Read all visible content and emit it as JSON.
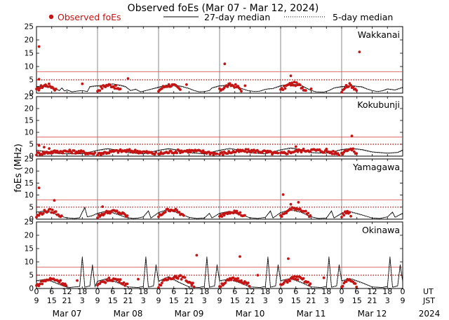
{
  "chart_data": {
    "type": "scatter",
    "title": "Observed foEs (Mar 07 - Mar 12, 2024)",
    "ylabel": "foEs (MHz)",
    "year": "2024",
    "ylim": [
      0,
      25
    ],
    "yticks": [
      0,
      5,
      10,
      15,
      20,
      25
    ],
    "xlim_hours_ut": [
      0,
      144
    ],
    "legend": {
      "observed": "Observed foEs",
      "median27": "27-day median",
      "median5": "5-day median"
    },
    "colors": {
      "observed": "#c41414",
      "median27": "#000000",
      "median5": "#000000",
      "threshold_solid": "#d84848",
      "threshold_dotted": "#b00000",
      "grid": "#888888"
    },
    "tick_row_labels": {
      "ut": "UT",
      "jst": "JST"
    },
    "ut_tick_labels": [
      "0",
      "6",
      "12",
      "18",
      "0",
      "6",
      "12",
      "18",
      "0",
      "6",
      "12",
      "18",
      "0",
      "6",
      "12",
      "18",
      "0",
      "6",
      "12",
      "18",
      "0",
      "6",
      "12",
      "18",
      "0"
    ],
    "jst_tick_labels": [
      "9",
      "15",
      "21",
      "3",
      "9",
      "15",
      "21",
      "3",
      "9",
      "15",
      "21",
      "3",
      "9",
      "15",
      "21",
      "3",
      "9",
      "15",
      "21",
      "3",
      "9",
      "15",
      "21",
      "3",
      "9"
    ],
    "date_labels": [
      "Mar 07",
      "Mar 08",
      "Mar 09",
      "Mar 10",
      "Mar 11",
      "Mar 12"
    ],
    "thresholds_mhz": {
      "solid": 8,
      "dotted": 5
    },
    "stations": [
      {
        "name": "Wakkanai",
        "data_end_hour": 144,
        "observed": [
          [
            1,
            17.5
          ],
          [
            59,
            3.2
          ],
          [
            74,
            11
          ],
          [
            127,
            15.5
          ],
          [
            100,
            6.5
          ],
          [
            1,
            5.2
          ],
          [
            36,
            5.5
          ],
          [
            18,
            3.5
          ],
          [
            82,
            2.8
          ],
          [
            108,
            1.6
          ]
        ],
        "median": [
          [
            0,
            2.5
          ],
          [
            2,
            2.6
          ],
          [
            4,
            2.4
          ],
          [
            6,
            2.2
          ],
          [
            8,
            1.5
          ],
          [
            9,
            1.0
          ],
          [
            10,
            2.0
          ],
          [
            11,
            0.8
          ],
          [
            12,
            1.2
          ],
          [
            14,
            0.5
          ],
          [
            16,
            0.8
          ],
          [
            18,
            1.0
          ],
          [
            20,
            0.6
          ],
          [
            21,
            2.5
          ],
          [
            24,
            2.8
          ],
          [
            27,
            3.0
          ],
          [
            30,
            3.5
          ],
          [
            33,
            3.0
          ],
          [
            35,
            2.5
          ],
          [
            37,
            1.0
          ],
          [
            39,
            1.5
          ],
          [
            41,
            0.5
          ],
          [
            43,
            1.0
          ],
          [
            45,
            1.5
          ],
          [
            47,
            2.0
          ],
          [
            49,
            2.5
          ],
          [
            51,
            3.0
          ],
          [
            54,
            2.9
          ],
          [
            57,
            2.6
          ],
          [
            60,
            1.8
          ],
          [
            62,
            1.0
          ],
          [
            64,
            0.5
          ],
          [
            66,
            0.6
          ],
          [
            68,
            1.0
          ],
          [
            69,
            2.0
          ],
          [
            72,
            2.8
          ],
          [
            76,
            3.0
          ],
          [
            80,
            2.0
          ],
          [
            83,
            1.0
          ],
          [
            86,
            0.6
          ],
          [
            88,
            0.8
          ],
          [
            90,
            1.5
          ],
          [
            93,
            1.8
          ],
          [
            96,
            2.8
          ],
          [
            100,
            3.5
          ],
          [
            104,
            3.0
          ],
          [
            106,
            2.0
          ],
          [
            108,
            1.0
          ],
          [
            110,
            0.5
          ],
          [
            113,
            0.4
          ],
          [
            115,
            1.0
          ],
          [
            117,
            2.0
          ],
          [
            120,
            2.5
          ],
          [
            124,
            2.8
          ],
          [
            128,
            2.4
          ],
          [
            130,
            1.6
          ],
          [
            132,
            1.0
          ],
          [
            134,
            0.6
          ],
          [
            136,
            0.9
          ],
          [
            138,
            1.6
          ],
          [
            141,
            1.2
          ],
          [
            144,
            2.2
          ]
        ],
        "obs_ranges": [
          [
            0,
            8,
            3
          ],
          [
            24,
            33,
            3
          ],
          [
            48,
            57,
            3
          ],
          [
            72,
            81,
            3
          ],
          [
            96,
            106,
            3.5
          ],
          [
            120,
            126,
            3
          ]
        ]
      },
      {
        "name": "Kokubunji",
        "data_end_hour": 126,
        "observed": [
          [
            124,
            8.5
          ],
          [
            1,
            4.5
          ],
          [
            3,
            3.8
          ],
          [
            5,
            3.2
          ],
          [
            102,
            4.0
          ],
          [
            114,
            3.0
          ]
        ],
        "median": [
          [
            0,
            2.5
          ],
          [
            4,
            2.0
          ],
          [
            8,
            1.2
          ],
          [
            12,
            1.0
          ],
          [
            18,
            1.0
          ],
          [
            24,
            2.5
          ],
          [
            28,
            3.2
          ],
          [
            32,
            2.5
          ],
          [
            36,
            1.5
          ],
          [
            42,
            1.0
          ],
          [
            48,
            2.5
          ],
          [
            52,
            3.2
          ],
          [
            56,
            2.5
          ],
          [
            60,
            1.5
          ],
          [
            66,
            1.0
          ],
          [
            72,
            2.5
          ],
          [
            76,
            3.3
          ],
          [
            80,
            2.5
          ],
          [
            84,
            1.5
          ],
          [
            90,
            1.0
          ],
          [
            96,
            2.7
          ],
          [
            100,
            3.5
          ],
          [
            104,
            2.8
          ],
          [
            108,
            1.5
          ],
          [
            114,
            1.3
          ],
          [
            117,
            2.0
          ],
          [
            120,
            2.8
          ],
          [
            124,
            3.3
          ],
          [
            128,
            2.8
          ],
          [
            132,
            1.8
          ],
          [
            138,
            1.3
          ],
          [
            142,
            1.6
          ],
          [
            144,
            2.6
          ]
        ],
        "obs_ranges": [
          [
            0,
            23,
            2
          ],
          [
            24,
            47,
            2.2
          ],
          [
            48,
            71,
            2.2
          ],
          [
            72,
            95,
            2.2
          ],
          [
            96,
            119,
            2.5
          ],
          [
            120,
            126,
            3
          ]
        ]
      },
      {
        "name": "Yamagawa",
        "data_end_hour": 126,
        "observed": [
          [
            1,
            13
          ],
          [
            7,
            7.8
          ],
          [
            97,
            10.2
          ],
          [
            103,
            7
          ],
          [
            100,
            6.2
          ],
          [
            26,
            5.2
          ]
        ],
        "median": [
          [
            0,
            3.0
          ],
          [
            4,
            3.5
          ],
          [
            8,
            2.0
          ],
          [
            11,
            0.8
          ],
          [
            13,
            0.5
          ],
          [
            15,
            0.3
          ],
          [
            17,
            0.6
          ],
          [
            18,
            3.0
          ],
          [
            19,
            5.0
          ],
          [
            20,
            1.0
          ],
          [
            22,
            1.5
          ],
          [
            24,
            2.5
          ],
          [
            28,
            3.5
          ],
          [
            32,
            2.0
          ],
          [
            35,
            0.8
          ],
          [
            38,
            0.3
          ],
          [
            40,
            0.5
          ],
          [
            42,
            1.0
          ],
          [
            44,
            3.5
          ],
          [
            45,
            0.5
          ],
          [
            48,
            2.8
          ],
          [
            52,
            4.2
          ],
          [
            56,
            2.5
          ],
          [
            60,
            0.8
          ],
          [
            63,
            0.3
          ],
          [
            66,
            0.5
          ],
          [
            68,
            2.5
          ],
          [
            69,
            0.5
          ],
          [
            72,
            2.5
          ],
          [
            76,
            3.3
          ],
          [
            80,
            2.0
          ],
          [
            84,
            0.6
          ],
          [
            87,
            0.3
          ],
          [
            90,
            0.8
          ],
          [
            92,
            3.5
          ],
          [
            93,
            0.5
          ],
          [
            96,
            2.8
          ],
          [
            100,
            4.0
          ],
          [
            104,
            3.0
          ],
          [
            108,
            1.0
          ],
          [
            111,
            0.3
          ],
          [
            114,
            0.5
          ],
          [
            116,
            3.5
          ],
          [
            117,
            0.5
          ],
          [
            120,
            2.5
          ],
          [
            124,
            3.0
          ],
          [
            128,
            1.8
          ],
          [
            132,
            0.5
          ],
          [
            135,
            0.3
          ],
          [
            138,
            1.0
          ],
          [
            140,
            3.0
          ],
          [
            141,
            0.8
          ],
          [
            144,
            2.5
          ]
        ],
        "obs_ranges": [
          [
            0,
            10,
            3.5
          ],
          [
            24,
            36,
            3.2
          ],
          [
            48,
            58,
            4
          ],
          [
            72,
            82,
            3.2
          ],
          [
            96,
            108,
            4.5
          ],
          [
            120,
            124,
            3
          ]
        ]
      },
      {
        "name": "Okinawa",
        "data_end_hour": 126,
        "observed": [
          [
            80,
            12
          ],
          [
            63,
            12.5
          ],
          [
            99,
            11.2
          ],
          [
            9,
            2.5
          ],
          [
            55,
            4
          ],
          [
            87,
            5
          ],
          [
            40,
            3.5
          ],
          [
            16,
            3
          ],
          [
            113,
            4
          ]
        ],
        "median": [
          [
            0,
            3.0
          ],
          [
            4,
            3.5
          ],
          [
            8,
            2.0
          ],
          [
            11,
            0.8
          ],
          [
            13,
            0.4
          ],
          [
            15,
            0.6
          ],
          [
            17,
            0.8
          ],
          [
            18,
            12.0
          ],
          [
            19,
            0.5
          ],
          [
            21,
            1.0
          ],
          [
            22,
            9.0
          ],
          [
            23,
            0.8
          ],
          [
            24,
            2.8
          ],
          [
            28,
            3.8
          ],
          [
            32,
            2.2
          ],
          [
            36,
            0.6
          ],
          [
            40,
            0.4
          ],
          [
            42,
            0.8
          ],
          [
            43,
            12.0
          ],
          [
            44,
            0.5
          ],
          [
            46,
            1.0
          ],
          [
            47,
            9.0
          ],
          [
            48,
            2.8
          ],
          [
            52,
            4.5
          ],
          [
            56,
            2.4
          ],
          [
            60,
            0.6
          ],
          [
            64,
            0.4
          ],
          [
            66,
            0.8
          ],
          [
            67,
            12.0
          ],
          [
            68,
            0.5
          ],
          [
            70,
            1.0
          ],
          [
            71,
            9.0
          ],
          [
            72,
            3.0
          ],
          [
            76,
            3.5
          ],
          [
            80,
            2.2
          ],
          [
            84,
            0.6
          ],
          [
            88,
            0.4
          ],
          [
            90,
            0.8
          ],
          [
            91,
            12.0
          ],
          [
            92,
            0.5
          ],
          [
            94,
            1.0
          ],
          [
            95,
            9.0
          ],
          [
            96,
            3.0
          ],
          [
            100,
            3.8
          ],
          [
            104,
            2.4
          ],
          [
            108,
            0.6
          ],
          [
            112,
            0.4
          ],
          [
            114,
            0.8
          ],
          [
            115,
            12.0
          ],
          [
            116,
            0.5
          ],
          [
            118,
            1.0
          ],
          [
            119,
            9.0
          ],
          [
            120,
            3.0
          ],
          [
            124,
            3.6
          ],
          [
            128,
            2.2
          ],
          [
            132,
            0.6
          ],
          [
            136,
            0.4
          ],
          [
            138,
            0.8
          ],
          [
            139,
            12.0
          ],
          [
            140,
            0.5
          ],
          [
            142,
            1.0
          ],
          [
            143,
            9.0
          ],
          [
            144,
            2.8
          ]
        ],
        "obs_ranges": [
          [
            0,
            12,
            3.5
          ],
          [
            24,
            36,
            3.5
          ],
          [
            48,
            62,
            4.5
          ],
          [
            72,
            84,
            3.5
          ],
          [
            96,
            108,
            4
          ],
          [
            120,
            126,
            3
          ]
        ]
      }
    ]
  }
}
